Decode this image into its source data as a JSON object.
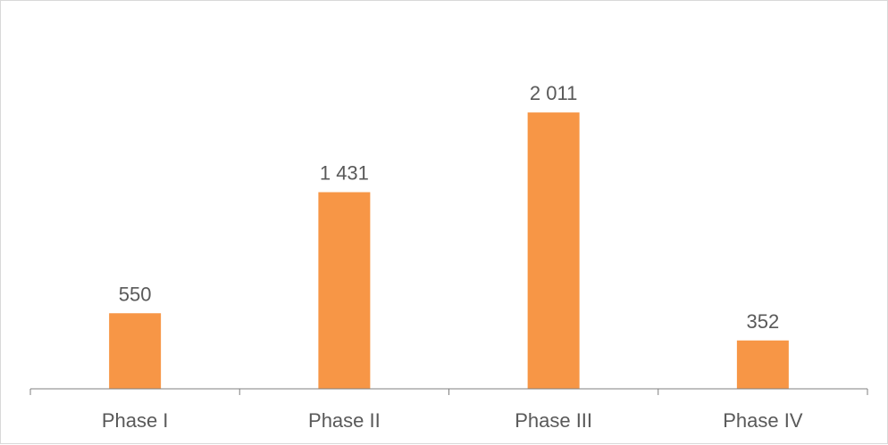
{
  "chart_data": {
    "type": "bar",
    "title": "",
    "xlabel": "",
    "ylabel": "",
    "categories": [
      "Phase I",
      "Phase II",
      "Phase III",
      "Phase IV"
    ],
    "values": [
      550,
      1431,
      2011,
      352
    ],
    "value_labels": [
      "550",
      "1 431",
      "2 011",
      "352"
    ],
    "ylim": [
      0,
      2200
    ],
    "grid": false,
    "legend": "none",
    "colors": {
      "bar": "#f79646",
      "axis": "#7f7f7f",
      "text": "#595959",
      "border": "#d9d9d9"
    }
  }
}
